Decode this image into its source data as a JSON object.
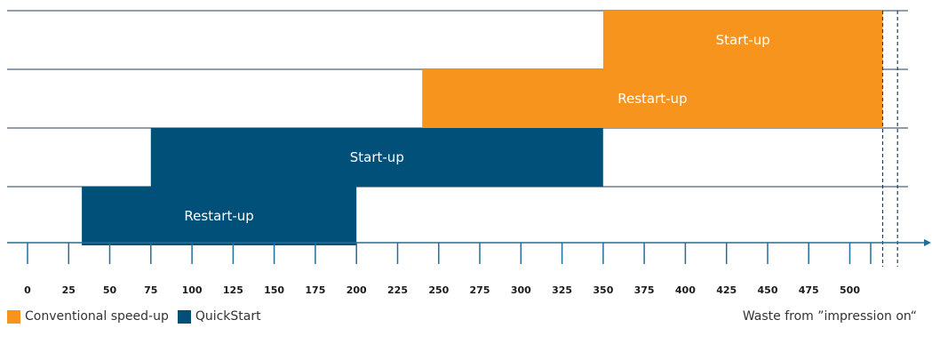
{
  "colors": {
    "conventional": "#f7941d",
    "quickstart": "#00507a",
    "row_line": "#1f3d55",
    "axis": "#1f6f9a"
  },
  "chart_data": {
    "type": "bar",
    "orientation": "horizontal",
    "title": "",
    "xlabel": "",
    "ylabel": "",
    "x_ticks": [
      0,
      25,
      50,
      75,
      100,
      125,
      150,
      175,
      200,
      225,
      250,
      275,
      300,
      325,
      350,
      375,
      400,
      425,
      450,
      475,
      500
    ],
    "xlim": [
      0,
      550
    ],
    "bars": [
      {
        "label": "Start-up",
        "series": "Conventional speed-up",
        "start": 350,
        "end": 520
      },
      {
        "label": "Restart-up",
        "series": "Conventional speed-up",
        "start": 240,
        "end": 520
      },
      {
        "label": "Start-up",
        "series": "QuickStart",
        "start": 75,
        "end": 350
      },
      {
        "label": "Restart-up",
        "series": "QuickStart",
        "start": 33,
        "end": 200
      }
    ],
    "marker_lines": [
      520,
      529
    ],
    "legend": [
      {
        "name": "Conventional speed-up",
        "color": "#f7941d"
      },
      {
        "name": "QuickStart",
        "color": "#00507a"
      }
    ],
    "legend_position": "bottom-left",
    "annotation": "Waste from ”impression on“"
  }
}
